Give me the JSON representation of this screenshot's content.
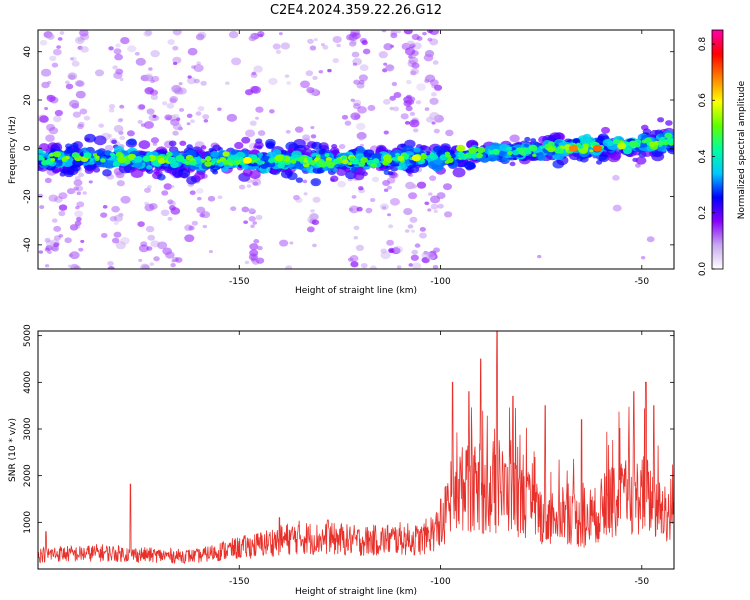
{
  "title": "C2E4.2024.359.22.26.G12",
  "colors": {
    "snr_line": "#e8302a",
    "frame": "#000000",
    "background": "#ffffff"
  },
  "chart_data": [
    {
      "type": "heatmap",
      "xlabel": "Height of straight line (km)",
      "ylabel": "Frequency (Hz)",
      "xlim": [
        -200,
        -42
      ],
      "ylim": [
        -50,
        49
      ],
      "xticks": [
        "-150",
        "-100",
        "-50"
      ],
      "xtick_values": [
        -150,
        -100,
        -50
      ],
      "yticks": [
        "-40",
        "-20",
        "0",
        "20",
        "40"
      ],
      "ytick_values": [
        -40,
        -20,
        0,
        20,
        40
      ],
      "ridge": {
        "x": [
          -200,
          -160,
          -140,
          -120,
          -100,
          -80,
          -60,
          -42
        ],
        "freq": [
          -4,
          -5,
          -5,
          -5,
          -4,
          -1,
          1,
          3
        ]
      },
      "colorbar": {
        "label": "Normalized spectral amplitude",
        "range": [
          0.0,
          0.85
        ],
        "ticks": [
          "0.0",
          "0.2",
          "0.4",
          "0.6",
          "0.8"
        ],
        "tick_values": [
          0.0,
          0.2,
          0.4,
          0.6,
          0.8
        ],
        "colormap": [
          "#ffffff",
          "#c8a8f0",
          "#8800ff",
          "#0000ff",
          "#00c8ff",
          "#00ffa0",
          "#60ff00",
          "#ffff00",
          "#ff8000",
          "#ff0000",
          "#ff00aa"
        ]
      },
      "grid": false
    },
    {
      "type": "line",
      "xlabel": "Height of straight line (km)",
      "ylabel": "SNR (10 * v/v)",
      "xlim": [
        -200,
        -42
      ],
      "ylim": [
        0,
        5100
      ],
      "xticks": [
        "-150",
        "-100",
        "-50"
      ],
      "xtick_values": [
        -150,
        -100,
        -50
      ],
      "yticks": [
        "1000",
        "2000",
        "3000",
        "4000",
        "5000"
      ],
      "ytick_values": [
        1000,
        2000,
        3000,
        4000,
        5000
      ],
      "grid": false,
      "series": [
        {
          "x": [
            -200,
            -195,
            -190,
            -185,
            -180,
            -175,
            -170,
            -165,
            -160,
            -155,
            -150,
            -145,
            -140,
            -135,
            -130,
            -125,
            -120,
            -115,
            -110,
            -105,
            -100,
            -97,
            -94,
            -91,
            -88,
            -85,
            -82,
            -79,
            -76,
            -73,
            -70,
            -67,
            -64,
            -61,
            -58,
            -55,
            -52,
            -49,
            -46,
            -42
          ],
          "y": [
            300,
            330,
            320,
            350,
            330,
            310,
            290,
            280,
            280,
            380,
            450,
            520,
            620,
            680,
            640,
            640,
            600,
            620,
            650,
            620,
            900,
            1600,
            1750,
            1700,
            1500,
            1700,
            1600,
            1400,
            1200,
            1100,
            1250,
            1100,
            900,
            1200,
            1400,
            1500,
            1550,
            1600,
            1300,
            1100
          ]
        }
      ],
      "peaks": [
        [
          -198,
          800
        ],
        [
          -177,
          1820
        ],
        [
          -140,
          1100
        ],
        [
          -128,
          1050
        ],
        [
          -100,
          1500
        ],
        [
          -97,
          4000
        ],
        [
          -93,
          3800
        ],
        [
          -90,
          4500
        ],
        [
          -86,
          5100
        ],
        [
          -82,
          3700
        ],
        [
          -74,
          3500
        ],
        [
          -65,
          3200
        ],
        [
          -52,
          3800
        ],
        [
          -49,
          4000
        ],
        [
          -47,
          3500
        ]
      ]
    }
  ]
}
